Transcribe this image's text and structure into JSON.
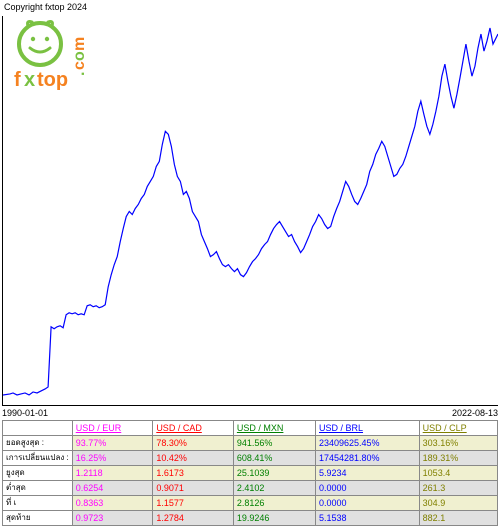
{
  "copyright": "Copyright fxtop 2024",
  "logo": {
    "face_color": "#7ac142",
    "text_color": "#f58220",
    "text": "fxtop",
    "dot_com": ".com",
    "dot_color": "#7ac142"
  },
  "chart": {
    "type": "line",
    "x_start_label": "1990-01-01",
    "x_end_label": "2022-08-13",
    "line_color": "#0000ff",
    "line_width": 1.2,
    "background_color": "#ffffff",
    "axis_color": "#000000",
    "xlim": [
      0,
      494
    ],
    "ylim": [
      0,
      388
    ],
    "points": [
      [
        0,
        378
      ],
      [
        7,
        377
      ],
      [
        10,
        376
      ],
      [
        14,
        378
      ],
      [
        18,
        377
      ],
      [
        22,
        376
      ],
      [
        26,
        378
      ],
      [
        30,
        375
      ],
      [
        34,
        376
      ],
      [
        38,
        374
      ],
      [
        42,
        372
      ],
      [
        45,
        370
      ],
      [
        48,
        310
      ],
      [
        51,
        312
      ],
      [
        54,
        310
      ],
      [
        57,
        309
      ],
      [
        60,
        311
      ],
      [
        63,
        298
      ],
      [
        66,
        296
      ],
      [
        69,
        297
      ],
      [
        72,
        296
      ],
      [
        75,
        298
      ],
      [
        78,
        297
      ],
      [
        81,
        298
      ],
      [
        84,
        289
      ],
      [
        87,
        288
      ],
      [
        90,
        290
      ],
      [
        93,
        289
      ],
      [
        96,
        291
      ],
      [
        99,
        290
      ],
      [
        102,
        288
      ],
      [
        105,
        270
      ],
      [
        108,
        258
      ],
      [
        111,
        248
      ],
      [
        114,
        240
      ],
      [
        117,
        225
      ],
      [
        120,
        212
      ],
      [
        123,
        200
      ],
      [
        126,
        195
      ],
      [
        129,
        198
      ],
      [
        132,
        192
      ],
      [
        135,
        188
      ],
      [
        138,
        182
      ],
      [
        141,
        178
      ],
      [
        144,
        170
      ],
      [
        147,
        165
      ],
      [
        150,
        160
      ],
      [
        153,
        150
      ],
      [
        156,
        145
      ],
      [
        159,
        128
      ],
      [
        162,
        115
      ],
      [
        165,
        118
      ],
      [
        168,
        130
      ],
      [
        171,
        148
      ],
      [
        174,
        160
      ],
      [
        177,
        165
      ],
      [
        180,
        178
      ],
      [
        183,
        175
      ],
      [
        186,
        182
      ],
      [
        189,
        195
      ],
      [
        192,
        200
      ],
      [
        195,
        205
      ],
      [
        198,
        218
      ],
      [
        201,
        225
      ],
      [
        204,
        232
      ],
      [
        207,
        240
      ],
      [
        210,
        238
      ],
      [
        213,
        235
      ],
      [
        216,
        242
      ],
      [
        219,
        248
      ],
      [
        222,
        250
      ],
      [
        225,
        248
      ],
      [
        228,
        252
      ],
      [
        231,
        255
      ],
      [
        234,
        252
      ],
      [
        237,
        258
      ],
      [
        240,
        260
      ],
      [
        243,
        256
      ],
      [
        246,
        250
      ],
      [
        249,
        245
      ],
      [
        252,
        242
      ],
      [
        255,
        238
      ],
      [
        258,
        232
      ],
      [
        261,
        228
      ],
      [
        264,
        225
      ],
      [
        267,
        218
      ],
      [
        270,
        212
      ],
      [
        273,
        208
      ],
      [
        276,
        205
      ],
      [
        279,
        210
      ],
      [
        282,
        215
      ],
      [
        285,
        220
      ],
      [
        288,
        218
      ],
      [
        291,
        225
      ],
      [
        294,
        230
      ],
      [
        297,
        236
      ],
      [
        300,
        232
      ],
      [
        303,
        225
      ],
      [
        306,
        218
      ],
      [
        309,
        210
      ],
      [
        312,
        205
      ],
      [
        315,
        198
      ],
      [
        318,
        202
      ],
      [
        321,
        208
      ],
      [
        324,
        212
      ],
      [
        327,
        210
      ],
      [
        330,
        200
      ],
      [
        333,
        192
      ],
      [
        336,
        185
      ],
      [
        339,
        175
      ],
      [
        342,
        165
      ],
      [
        345,
        170
      ],
      [
        348,
        178
      ],
      [
        351,
        185
      ],
      [
        354,
        188
      ],
      [
        357,
        182
      ],
      [
        360,
        175
      ],
      [
        363,
        168
      ],
      [
        366,
        155
      ],
      [
        369,
        148
      ],
      [
        372,
        138
      ],
      [
        375,
        132
      ],
      [
        378,
        125
      ],
      [
        381,
        130
      ],
      [
        384,
        140
      ],
      [
        387,
        150
      ],
      [
        390,
        160
      ],
      [
        393,
        158
      ],
      [
        396,
        152
      ],
      [
        399,
        148
      ],
      [
        402,
        140
      ],
      [
        405,
        130
      ],
      [
        408,
        120
      ],
      [
        411,
        110
      ],
      [
        414,
        95
      ],
      [
        417,
        85
      ],
      [
        420,
        98
      ],
      [
        423,
        110
      ],
      [
        426,
        118
      ],
      [
        429,
        108
      ],
      [
        432,
        95
      ],
      [
        435,
        80
      ],
      [
        438,
        60
      ],
      [
        441,
        48
      ],
      [
        444,
        65
      ],
      [
        447,
        80
      ],
      [
        450,
        92
      ],
      [
        453,
        78
      ],
      [
        456,
        62
      ],
      [
        459,
        45
      ],
      [
        462,
        28
      ],
      [
        465,
        45
      ],
      [
        468,
        60
      ],
      [
        471,
        50
      ],
      [
        474,
        32
      ],
      [
        477,
        18
      ],
      [
        480,
        35
      ],
      [
        483,
        25
      ],
      [
        486,
        12
      ],
      [
        489,
        28
      ],
      [
        492,
        22
      ],
      [
        494,
        18
      ]
    ]
  },
  "table": {
    "header_bg": "#e0e0e0",
    "columns": [
      {
        "label": "USD / EUR",
        "color": "#ff00ff"
      },
      {
        "label": "USD / CAD",
        "color": "#ff0000"
      },
      {
        "label": "USD / MXN",
        "color": "#008000"
      },
      {
        "label": "USD / BRL",
        "color": "#0000ff"
      },
      {
        "label": "USD / CLP",
        "color": "#808000"
      }
    ],
    "rows": [
      {
        "label": "ยอดสูงสุด :",
        "bg": "#f0f0d0",
        "cells": [
          "93.77%",
          "78.30%",
          "941.56%",
          "23409625.45%",
          "303.16%"
        ]
      },
      {
        "label": "เการเปลี่ยนแปลง :",
        "bg": "#e0e0e0",
        "cells": [
          "16.25%",
          "10.42%",
          "608.41%",
          "17454281.80%",
          "189.31%"
        ]
      },
      {
        "label": "ยูงสุด",
        "bg": "#f0f0d0",
        "cells": [
          "1.2118",
          "1.6173",
          "25.1039",
          "5.9234",
          "1053.4"
        ]
      },
      {
        "label": "ต่ำสุด",
        "bg": "#e0e0e0",
        "cells": [
          "0.6254",
          "0.9071",
          "2.4102",
          "0.0000",
          "261.3"
        ]
      },
      {
        "label": "ที่ เ",
        "bg": "#f0f0d0",
        "cells": [
          "0.8363",
          "1.1577",
          "2.8126",
          "0.0000",
          "304.9"
        ]
      },
      {
        "label": "สุดท้าย",
        "bg": "#e0e0e0",
        "cells": [
          "0.9723",
          "1.2784",
          "19.9246",
          "5.1538",
          "882.1"
        ]
      }
    ]
  }
}
